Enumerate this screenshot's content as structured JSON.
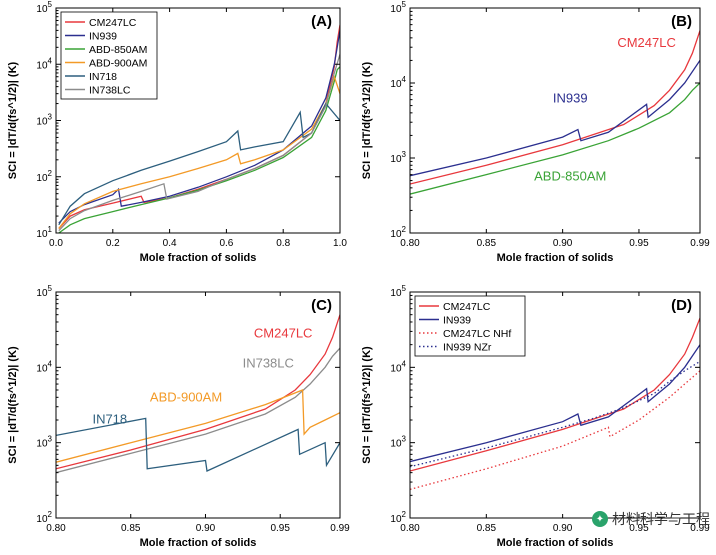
{
  "figure": {
    "ylabel": "SCI = |dT/d(fs^1/2)| (K)",
    "watermark": "材料科学与工程"
  },
  "chart_data": [
    {
      "panel": "(A)",
      "type": "line",
      "xlabel": "Mole fraction of solids",
      "ylabel": "SCI = |dT/d(fs^1/2)| (K)",
      "xlim": [
        0.0,
        1.0
      ],
      "ylim": [
        10,
        100000
      ],
      "yscale": "log",
      "xticks": [
        0.0,
        0.2,
        0.4,
        0.6,
        0.8,
        1.0
      ],
      "xtick_labels": [
        "0.0",
        "0.2",
        "0.4",
        "0.6",
        "0.8",
        "1.0"
      ],
      "yticks": [
        10,
        100,
        1000,
        10000,
        100000
      ],
      "ytick_labels": [
        "10^1",
        "10^2",
        "10^3",
        "10^4",
        "10^5"
      ],
      "legend": "top-left",
      "series": [
        {
          "name": "CM247LC",
          "color": "#e8383d",
          "x": [
            0.01,
            0.05,
            0.1,
            0.2,
            0.3,
            0.31,
            0.4,
            0.5,
            0.6,
            0.7,
            0.8,
            0.9,
            0.95,
            0.98,
            0.99,
            1.0
          ],
          "y": [
            12,
            20,
            26,
            34,
            45,
            35,
            42,
            60,
            90,
            140,
            240,
            600,
            2000,
            9000,
            25000,
            50000
          ]
        },
        {
          "name": "IN939",
          "color": "#2b2f8f",
          "x": [
            0.01,
            0.05,
            0.1,
            0.2,
            0.22,
            0.23,
            0.3,
            0.4,
            0.5,
            0.6,
            0.7,
            0.8,
            0.9,
            0.95,
            0.98,
            0.99,
            1.0
          ],
          "y": [
            15,
            24,
            32,
            48,
            60,
            30,
            35,
            45,
            65,
            100,
            160,
            300,
            800,
            2500,
            10000,
            20000,
            40000
          ]
        },
        {
          "name": "ABD-850AM",
          "color": "#3aa336",
          "x": [
            0.01,
            0.05,
            0.1,
            0.2,
            0.3,
            0.4,
            0.5,
            0.6,
            0.7,
            0.8,
            0.9,
            0.95,
            0.98,
            0.99,
            1.0
          ],
          "y": [
            9,
            14,
            18,
            24,
            32,
            42,
            58,
            85,
            130,
            220,
            500,
            1500,
            5000,
            8000,
            9000
          ]
        },
        {
          "name": "ABD-900AM",
          "color": "#f39a27",
          "x": [
            0.01,
            0.05,
            0.1,
            0.2,
            0.3,
            0.4,
            0.5,
            0.6,
            0.64,
            0.65,
            0.7,
            0.8,
            0.9,
            0.95,
            0.98,
            1.0
          ],
          "y": [
            12,
            22,
            33,
            55,
            75,
            100,
            140,
            200,
            260,
            170,
            200,
            300,
            700,
            2000,
            6000,
            3000
          ]
        },
        {
          "name": "IN718",
          "color": "#2d5f7e",
          "x": [
            0.01,
            0.05,
            0.1,
            0.2,
            0.3,
            0.4,
            0.5,
            0.6,
            0.64,
            0.65,
            0.7,
            0.8,
            0.86,
            0.87,
            0.9,
            0.95,
            1.0
          ],
          "y": [
            14,
            30,
            50,
            85,
            130,
            190,
            280,
            420,
            650,
            300,
            340,
            420,
            1400,
            500,
            600,
            2000,
            1000
          ]
        },
        {
          "name": "IN738LC",
          "color": "#8c8c8c",
          "x": [
            0.01,
            0.05,
            0.1,
            0.2,
            0.3,
            0.38,
            0.39,
            0.5,
            0.6,
            0.7,
            0.8,
            0.9,
            0.95,
            0.98,
            1.0
          ],
          "y": [
            11,
            18,
            25,
            38,
            55,
            75,
            40,
            55,
            90,
            140,
            240,
            600,
            1800,
            7000,
            15000
          ]
        }
      ]
    },
    {
      "panel": "(B)",
      "type": "line",
      "xlabel": "Mole fraction of solids",
      "ylabel": "SCI = |dT/d(fs^1/2)| (K)",
      "xlim": [
        0.8,
        0.99
      ],
      "ylim": [
        100,
        100000
      ],
      "yscale": "log",
      "xticks": [
        0.8,
        0.85,
        0.9,
        0.95,
        0.99
      ],
      "xtick_labels": [
        "0.80",
        "0.85",
        "0.90",
        "0.95",
        "0.99"
      ],
      "yticks": [
        100,
        1000,
        10000,
        100000
      ],
      "ytick_labels": [
        "10^2",
        "10^3",
        "10^4",
        "10^5"
      ],
      "annotations": [
        {
          "text": "CM247LC",
          "color": "#e8383d",
          "x": 0.955,
          "y": 30000
        },
        {
          "text": "IN939",
          "color": "#2b2f8f",
          "x": 0.905,
          "y": 5500
        },
        {
          "text": "ABD-850AM",
          "color": "#3aa336",
          "x": 0.905,
          "y": 500
        }
      ],
      "series": [
        {
          "name": "CM247LC",
          "color": "#e8383d",
          "x": [
            0.8,
            0.85,
            0.9,
            0.94,
            0.96,
            0.97,
            0.98,
            0.985,
            0.99
          ],
          "y": [
            450,
            800,
            1500,
            2800,
            5000,
            8000,
            15000,
            25000,
            50000
          ]
        },
        {
          "name": "IN939",
          "color": "#2b2f8f",
          "x": [
            0.8,
            0.85,
            0.9,
            0.91,
            0.912,
            0.93,
            0.955,
            0.956,
            0.97,
            0.98,
            0.99
          ],
          "y": [
            580,
            1000,
            1900,
            2400,
            1700,
            2200,
            5200,
            3500,
            6000,
            10000,
            20000
          ]
        },
        {
          "name": "ABD-850AM",
          "color": "#3aa336",
          "x": [
            0.8,
            0.85,
            0.9,
            0.93,
            0.95,
            0.97,
            0.98,
            0.985,
            0.99
          ],
          "y": [
            330,
            600,
            1100,
            1700,
            2500,
            4000,
            6000,
            8000,
            10000
          ]
        }
      ]
    },
    {
      "panel": "(C)",
      "type": "line",
      "xlabel": "Mole fraction of solids",
      "ylabel": "SCI = |dT/d(fs^1/2)| (K)",
      "xlim": [
        0.8,
        0.99
      ],
      "ylim": [
        100,
        100000
      ],
      "yscale": "log",
      "xticks": [
        0.8,
        0.85,
        0.9,
        0.95,
        0.99
      ],
      "xtick_labels": [
        "0.80",
        "0.85",
        "0.90",
        "0.95",
        "0.99"
      ],
      "yticks": [
        100,
        1000,
        10000,
        100000
      ],
      "ytick_labels": [
        "10^2",
        "10^3",
        "10^4",
        "10^5"
      ],
      "annotations": [
        {
          "text": "CM247LC",
          "color": "#e8383d",
          "x": 0.952,
          "y": 25000
        },
        {
          "text": "IN738LC",
          "color": "#8c8c8c",
          "x": 0.942,
          "y": 10000
        },
        {
          "text": "ABD-900AM",
          "color": "#f39a27",
          "x": 0.887,
          "y": 3500
        },
        {
          "text": "IN718",
          "color": "#2d5f7e",
          "x": 0.836,
          "y": 1800
        }
      ],
      "series": [
        {
          "name": "CM247LC",
          "color": "#e8383d",
          "x": [
            0.8,
            0.85,
            0.9,
            0.94,
            0.96,
            0.97,
            0.98,
            0.985,
            0.99
          ],
          "y": [
            450,
            800,
            1500,
            2800,
            5000,
            8000,
            15000,
            25000,
            50000
          ]
        },
        {
          "name": "IN738LC",
          "color": "#8c8c8c",
          "x": [
            0.8,
            0.85,
            0.9,
            0.94,
            0.96,
            0.97,
            0.98,
            0.985,
            0.99
          ],
          "y": [
            400,
            720,
            1300,
            2400,
            4000,
            6000,
            10000,
            14000,
            18000
          ]
        },
        {
          "name": "ABD-900AM",
          "color": "#f39a27",
          "x": [
            0.8,
            0.85,
            0.9,
            0.94,
            0.965,
            0.966,
            0.97,
            0.98,
            0.99
          ],
          "y": [
            550,
            1000,
            1800,
            3200,
            5000,
            1300,
            1600,
            2000,
            2500
          ]
        },
        {
          "name": "IN718",
          "color": "#2d5f7e",
          "x": [
            0.8,
            0.86,
            0.861,
            0.9,
            0.901,
            0.962,
            0.963,
            0.98,
            0.981,
            0.99
          ],
          "y": [
            1250,
            2100,
            450,
            580,
            420,
            1500,
            700,
            1000,
            500,
            1000
          ]
        }
      ]
    },
    {
      "panel": "(D)",
      "type": "line",
      "xlabel": "Mole fraction of solids",
      "ylabel": "SCI = |dT/d(fs^1/2)| (K)",
      "xlim": [
        0.8,
        0.99
      ],
      "ylim": [
        100,
        100000
      ],
      "yscale": "log",
      "xticks": [
        0.8,
        0.85,
        0.9,
        0.95,
        0.99
      ],
      "xtick_labels": [
        "0.80",
        "0.85",
        "0.90",
        "0.95",
        "0.99"
      ],
      "yticks": [
        100,
        1000,
        10000,
        100000
      ],
      "ytick_labels": [
        "10^2",
        "10^3",
        "10^4",
        "10^5"
      ],
      "legend": "top-left",
      "series": [
        {
          "name": "CM247LC",
          "color": "#e8383d",
          "style": "solid",
          "x": [
            0.8,
            0.85,
            0.9,
            0.94,
            0.96,
            0.97,
            0.98,
            0.985,
            0.99
          ],
          "y": [
            420,
            780,
            1500,
            2800,
            5000,
            8000,
            15000,
            25000,
            45000
          ]
        },
        {
          "name": "IN939",
          "color": "#2b2f8f",
          "style": "solid",
          "x": [
            0.8,
            0.85,
            0.9,
            0.91,
            0.912,
            0.93,
            0.955,
            0.956,
            0.97,
            0.98,
            0.99
          ],
          "y": [
            560,
            1000,
            1900,
            2400,
            1700,
            2200,
            5200,
            3500,
            6000,
            10000,
            20000
          ]
        },
        {
          "name": "CM247LC NHf",
          "color": "#e8383d",
          "style": "dotted",
          "x": [
            0.8,
            0.85,
            0.9,
            0.93,
            0.931,
            0.95,
            0.97,
            0.98,
            0.99
          ],
          "y": [
            240,
            450,
            900,
            1600,
            1200,
            2000,
            4000,
            6000,
            9000
          ]
        },
        {
          "name": "IN939 NZr",
          "color": "#2b2f8f",
          "style": "dotted",
          "x": [
            0.8,
            0.85,
            0.9,
            0.92,
            0.94,
            0.96,
            0.97,
            0.98,
            0.99
          ],
          "y": [
            480,
            850,
            1600,
            2100,
            2900,
            4500,
            6500,
            9000,
            12000
          ]
        }
      ]
    }
  ]
}
